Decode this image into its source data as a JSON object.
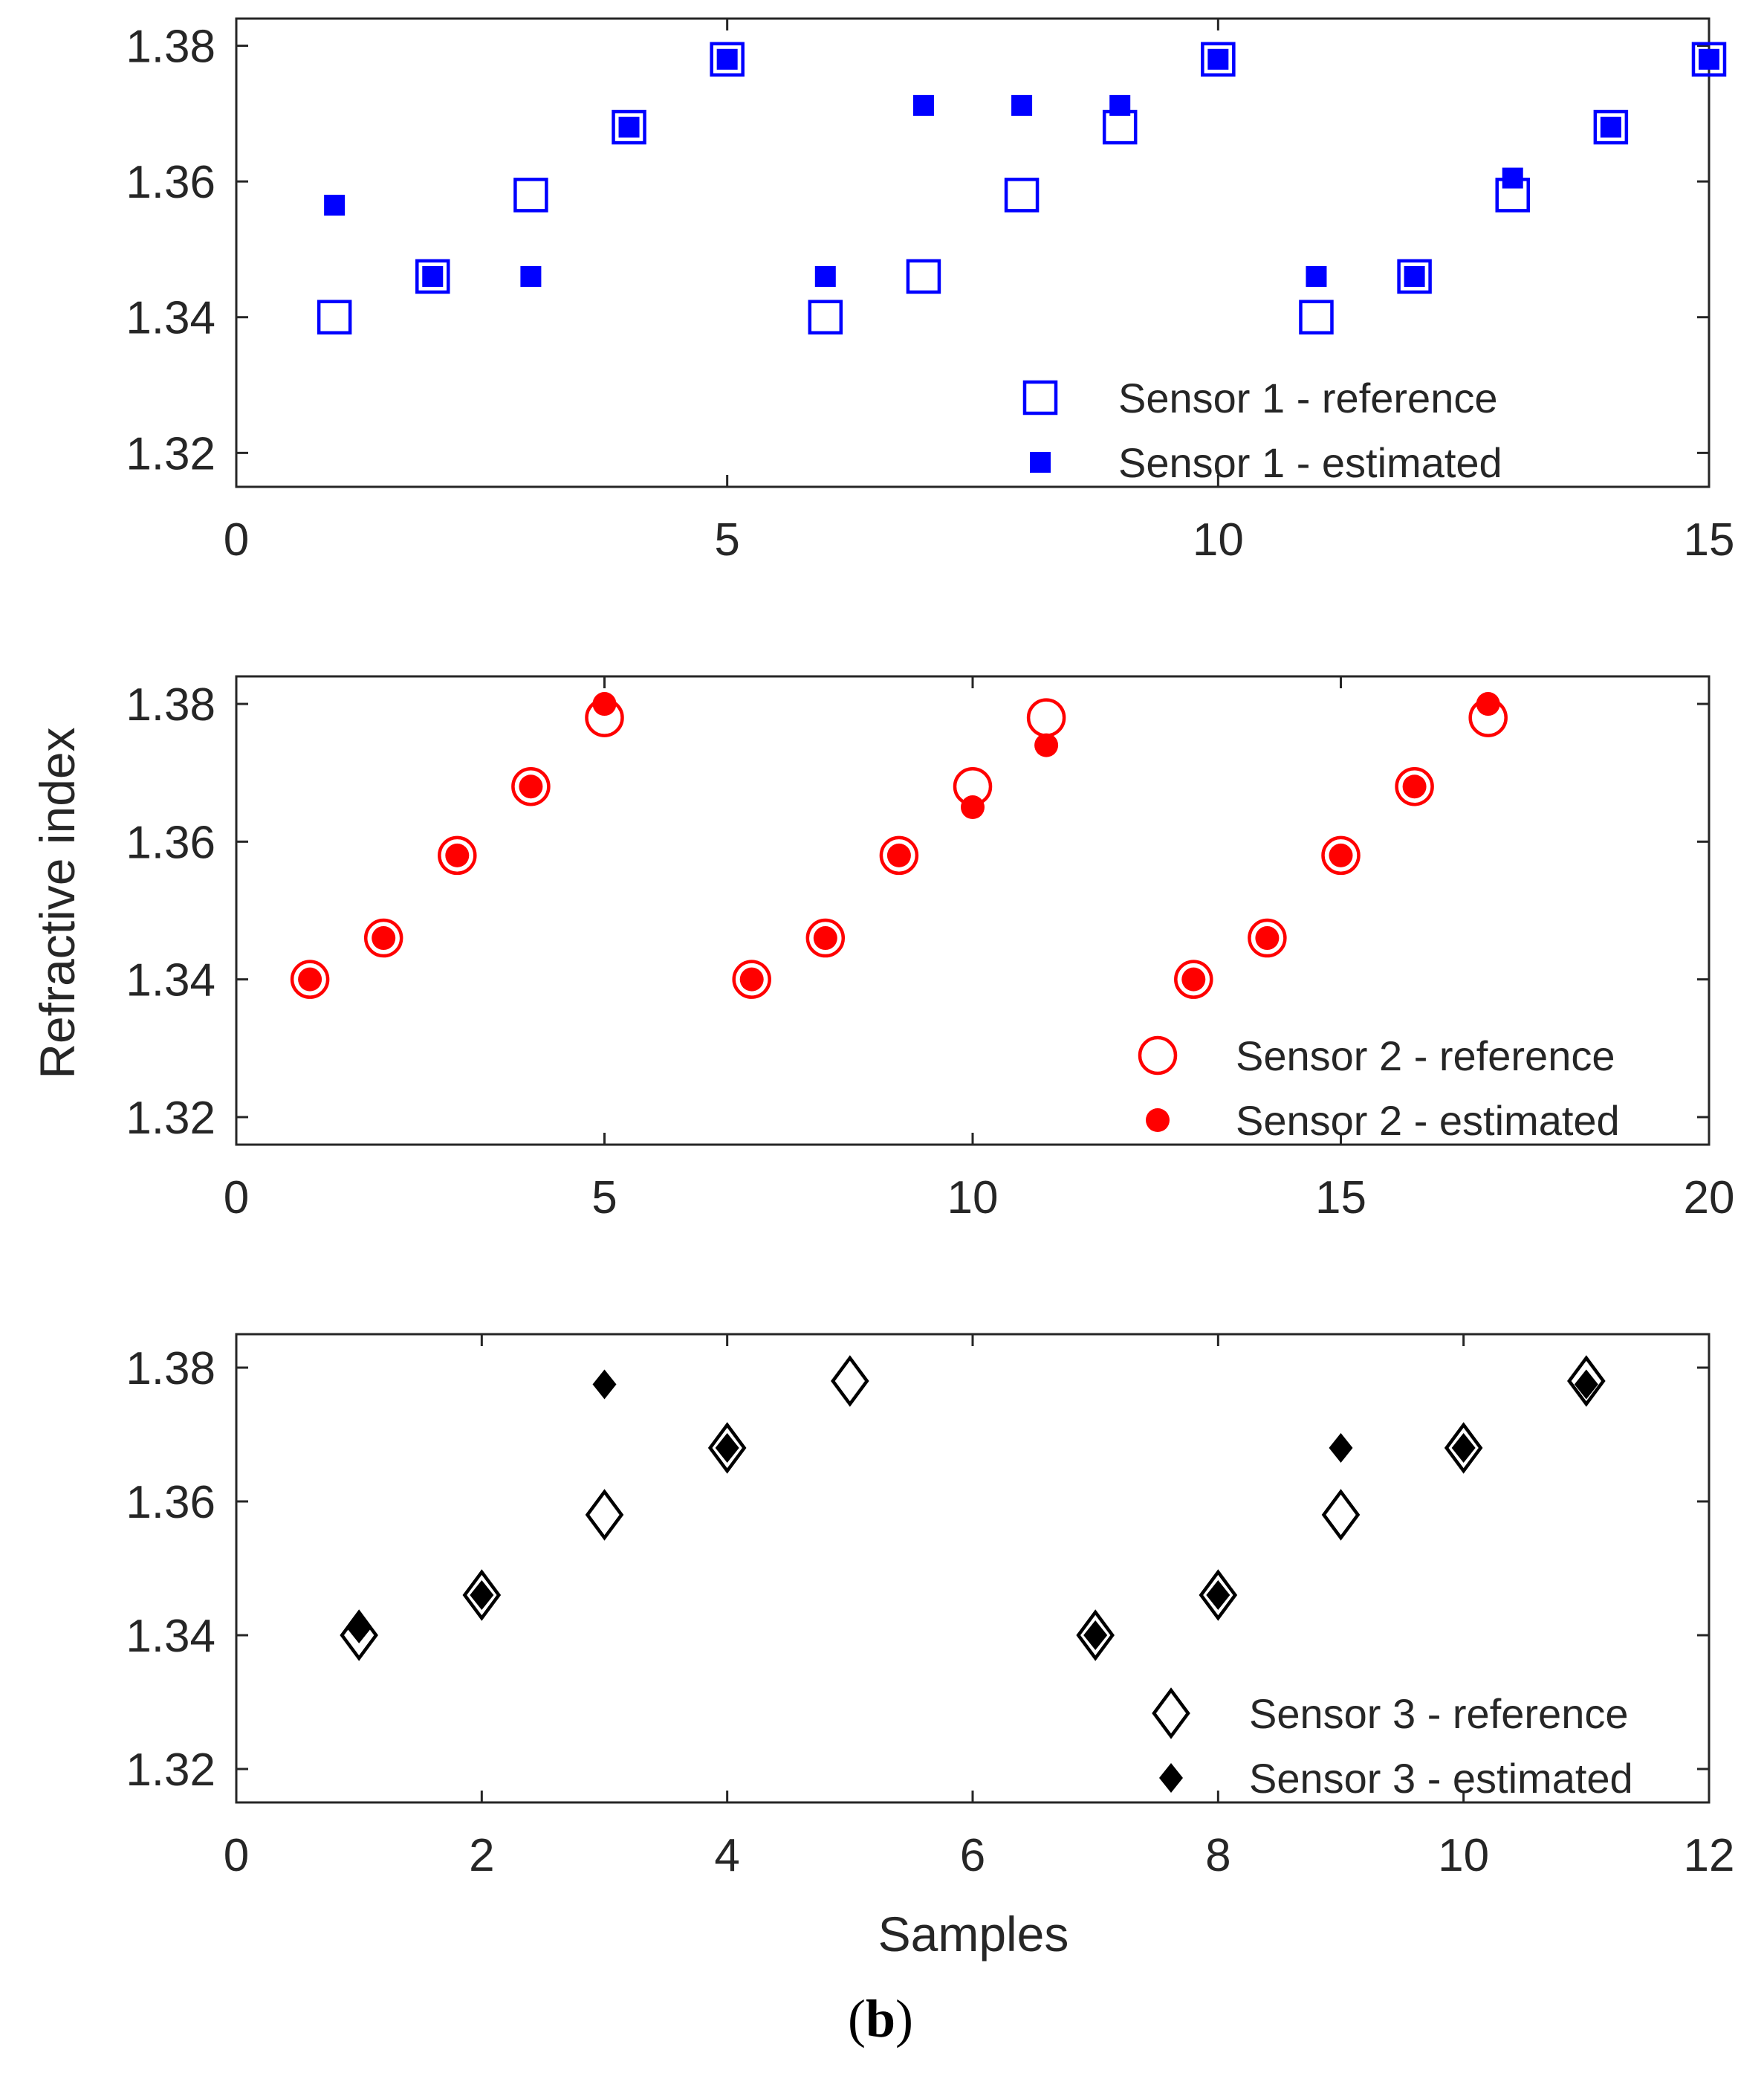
{
  "figure": {
    "y_axis_label": "Refractive index",
    "x_axis_label": "Samples",
    "panel_label_open": "(",
    "panel_label_letter": "b",
    "panel_label_close": ")"
  },
  "chart_data": [
    {
      "type": "scatter",
      "panel": "top",
      "color": "#0000ff",
      "xlim": [
        0,
        15
      ],
      "ylim": [
        1.315,
        1.384
      ],
      "xticks": [
        0,
        5,
        10,
        15
      ],
      "xtick_labels": [
        "0",
        "5",
        "10",
        "15"
      ],
      "yticks": [
        1.32,
        1.34,
        1.36,
        1.38
      ],
      "ytick_labels": [
        "1.32",
        "1.34",
        "1.36",
        "1.38"
      ],
      "legend_position": "bottom-right",
      "series": [
        {
          "name": "Sensor 1 - reference",
          "marker": "square-open",
          "x": [
            1,
            2,
            3,
            4,
            5,
            6,
            7,
            8,
            9,
            10,
            11,
            12,
            13,
            14,
            15
          ],
          "y": [
            1.34,
            1.346,
            1.358,
            1.368,
            1.378,
            1.34,
            1.346,
            1.358,
            1.368,
            1.378,
            1.34,
            1.346,
            1.358,
            1.368,
            1.378
          ]
        },
        {
          "name": "Sensor 1 - estimated",
          "marker": "square-filled",
          "x": [
            1,
            2,
            3,
            4,
            5,
            6,
            7,
            8,
            9,
            10,
            11,
            12,
            13,
            14,
            15
          ],
          "y": [
            1.3565,
            1.346,
            1.346,
            1.368,
            1.378,
            1.346,
            1.3712,
            1.3712,
            1.3712,
            1.378,
            1.346,
            1.346,
            1.3605,
            1.368,
            1.378
          ]
        }
      ]
    },
    {
      "type": "scatter",
      "panel": "middle",
      "color": "#ff0000",
      "xlim": [
        0,
        20
      ],
      "ylim": [
        1.316,
        1.384
      ],
      "xticks": [
        0,
        5,
        10,
        15,
        20
      ],
      "xtick_labels": [
        "0",
        "5",
        "10",
        "15",
        "20"
      ],
      "yticks": [
        1.32,
        1.34,
        1.36,
        1.38
      ],
      "ytick_labels": [
        "1.32",
        "1.34",
        "1.36",
        "1.38"
      ],
      "legend_position": "bottom-right",
      "series": [
        {
          "name": "Sensor 2 - reference",
          "marker": "circle-open",
          "x": [
            1,
            2,
            3,
            4,
            5,
            7,
            8,
            9,
            10,
            11,
            13,
            14,
            15,
            16,
            17
          ],
          "y": [
            1.34,
            1.346,
            1.358,
            1.368,
            1.378,
            1.34,
            1.346,
            1.358,
            1.368,
            1.378,
            1.34,
            1.346,
            1.358,
            1.368,
            1.378
          ]
        },
        {
          "name": "Sensor 2 - estimated",
          "marker": "circle-filled",
          "x": [
            1,
            2,
            3,
            4,
            5,
            7,
            8,
            9,
            10,
            11,
            13,
            14,
            15,
            16,
            17
          ],
          "y": [
            1.34,
            1.346,
            1.358,
            1.368,
            1.38,
            1.34,
            1.346,
            1.358,
            1.365,
            1.374,
            1.34,
            1.346,
            1.358,
            1.368,
            1.38
          ]
        }
      ]
    },
    {
      "type": "scatter",
      "panel": "bottom",
      "color": "#000000",
      "xlim": [
        0,
        12
      ],
      "ylim": [
        1.315,
        1.385
      ],
      "xticks": [
        0,
        2,
        4,
        6,
        8,
        10,
        12
      ],
      "xtick_labels": [
        "0",
        "2",
        "4",
        "6",
        "8",
        "10",
        "12"
      ],
      "yticks": [
        1.32,
        1.34,
        1.36,
        1.38
      ],
      "ytick_labels": [
        "1.32",
        "1.34",
        "1.36",
        "1.38"
      ],
      "legend_position": "bottom-right",
      "series": [
        {
          "name": "Sensor 3 - reference",
          "marker": "diamond-open",
          "x": [
            1,
            2,
            3,
            4,
            5,
            7,
            8,
            9,
            10,
            11
          ],
          "y": [
            1.34,
            1.346,
            1.358,
            1.368,
            1.378,
            1.34,
            1.346,
            1.358,
            1.368,
            1.378
          ]
        },
        {
          "name": "Sensor 3 - estimated",
          "marker": "diamond-filled",
          "x": [
            1,
            2,
            3,
            4,
            7,
            8,
            9,
            10,
            11
          ],
          "y": [
            1.341,
            1.346,
            1.3775,
            1.368,
            1.34,
            1.346,
            1.368,
            1.368,
            1.3775
          ]
        }
      ]
    }
  ]
}
